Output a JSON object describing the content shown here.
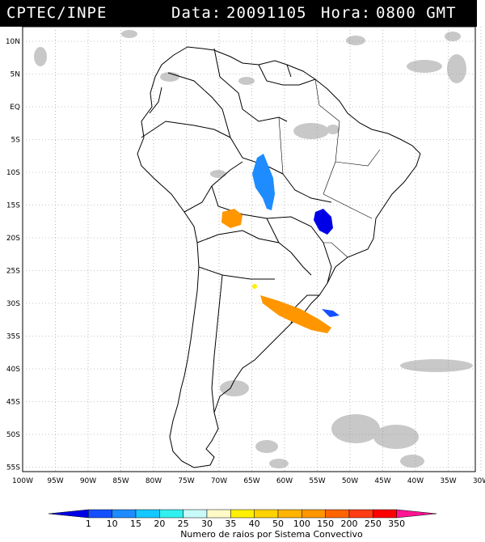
{
  "header": {
    "agency": "CPTEC/INPE",
    "date_label": "Data:",
    "date": "20091105",
    "hour_label": "Hora:",
    "hour": "0800 GMT"
  },
  "lat_labels": [
    "10N",
    "5N",
    "EQ",
    "5S",
    "10S",
    "15S",
    "20S",
    "25S",
    "30S",
    "35S",
    "40S",
    "45S",
    "50S",
    "55S"
  ],
  "lon_labels": [
    "100W",
    "95W",
    "90W",
    "85W",
    "80W",
    "75W",
    "70W",
    "65W",
    "60W",
    "55W",
    "50W",
    "45W",
    "40W",
    "35W",
    "30W"
  ],
  "legend": {
    "title": "Numero de raios por Sistema Convectivo",
    "ticks": [
      "1",
      "10",
      "15",
      "20",
      "25",
      "30",
      "35",
      "40",
      "50",
      "100",
      "150",
      "200",
      "250",
      "350"
    ],
    "colors": [
      "#0000e6",
      "#1450ff",
      "#1e8cff",
      "#14c8ff",
      "#32f0f0",
      "#c8fafa",
      "#fffac8",
      "#fff000",
      "#ffd200",
      "#ffb400",
      "#ff9600",
      "#ff6400",
      "#ff3c14",
      "#ff0000",
      "#ff1493"
    ]
  },
  "colors": {
    "land_outline": "#000000",
    "clouds": "#c8c8c8",
    "grid": "#8c8c8c"
  }
}
